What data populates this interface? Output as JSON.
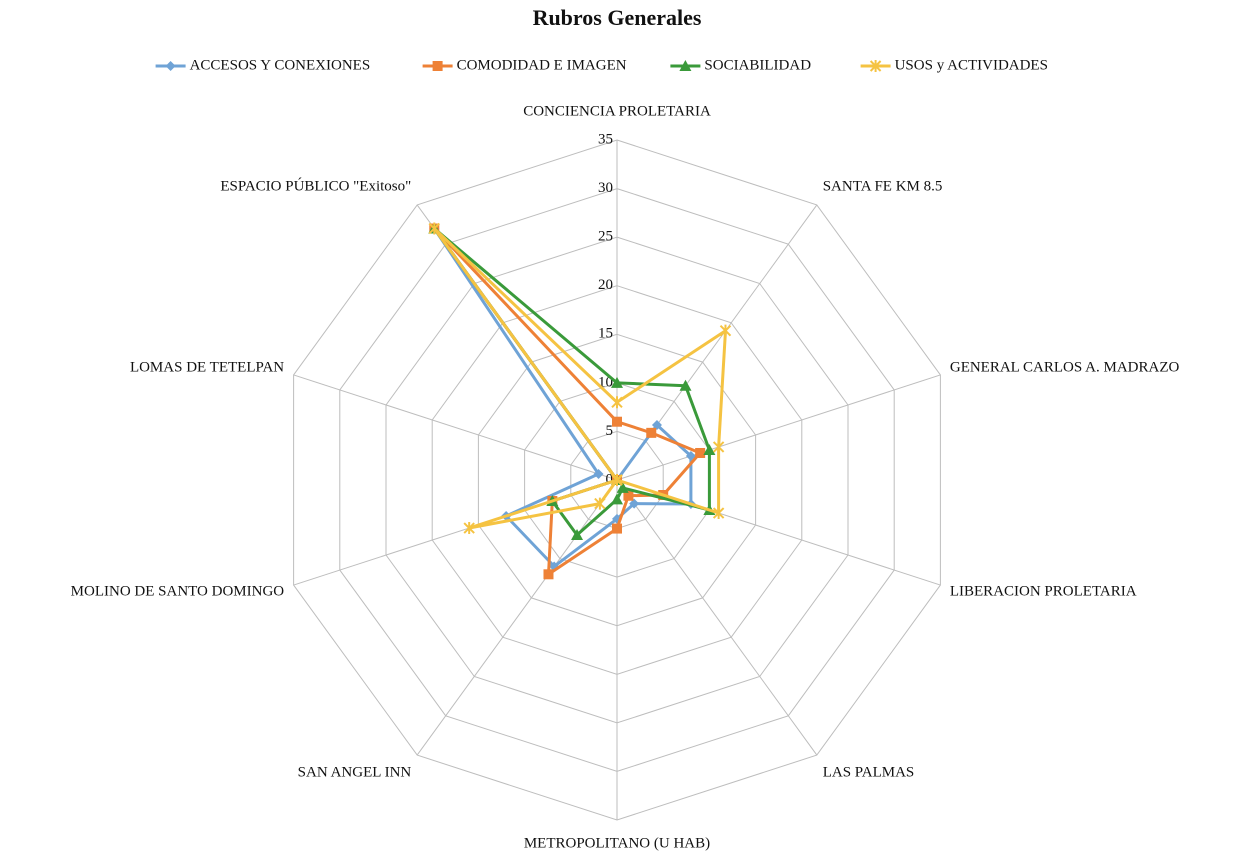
{
  "chart_data": {
    "type": "radar",
    "title": "Rubros Generales",
    "categories": [
      "CONCIENCIA PROLETARIA",
      "SANTA FE KM 8.5",
      "GENERAL CARLOS A. MADRAZO",
      "LIBERACION PROLETARIA",
      "LAS PALMAS",
      "METROPOLITANO (U HAB)",
      "SAN ANGEL INN",
      "MOLINO DE SANTO DOMINGO",
      "LOMAS DE TETELPAN",
      "ESPACIO PÚBLICO \"Exitoso\""
    ],
    "series": [
      {
        "name": "ACCESOS Y CONEXIONES",
        "color": "#6fa3d6",
        "marker": "diamond",
        "values": [
          0,
          7,
          8,
          8,
          3,
          4,
          11,
          12,
          2,
          32
        ]
      },
      {
        "name": "COMODIDAD E IMAGEN",
        "color": "#ee8136",
        "marker": "square",
        "values": [
          6,
          6,
          9,
          5,
          2,
          5,
          12,
          7,
          0,
          32
        ]
      },
      {
        "name": "SOCIABILIDAD",
        "color": "#3a9a3a",
        "marker": "triangle",
        "values": [
          10,
          12,
          10,
          10,
          1,
          2,
          7,
          7,
          0,
          32
        ]
      },
      {
        "name": "USOS y ACTIVIDADES",
        "color": "#f5c342",
        "marker": "star",
        "values": [
          8,
          19,
          11,
          11,
          0,
          0,
          3,
          16,
          0,
          32
        ]
      }
    ],
    "ylim": [
      0,
      35
    ],
    "yticks": [
      0,
      5,
      10,
      15,
      20,
      25,
      30,
      35
    ],
    "grid": true,
    "legend": "top"
  }
}
